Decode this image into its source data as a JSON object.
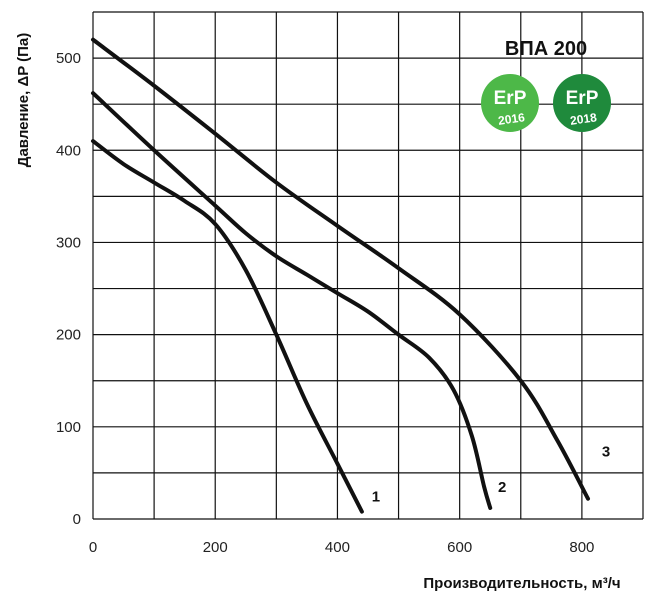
{
  "chart_data": {
    "type": "line",
    "xlabel": "Производительность, м³/ч",
    "ylabel": "Давление, ΔP (Па)",
    "xlim": [
      0,
      900
    ],
    "ylim": [
      0,
      550
    ],
    "x_grid_step": 100,
    "y_grid_step": 50,
    "x_ticks": [
      0,
      200,
      400,
      600,
      800
    ],
    "y_ticks": [
      0,
      100,
      200,
      300,
      400,
      500
    ],
    "grid": true,
    "series": [
      {
        "name": "1",
        "color": "#111111",
        "points": [
          [
            0,
            410
          ],
          [
            50,
            385
          ],
          [
            100,
            365
          ],
          [
            150,
            345
          ],
          [
            200,
            320
          ],
          [
            250,
            270
          ],
          [
            300,
            200
          ],
          [
            350,
            125
          ],
          [
            400,
            60
          ],
          [
            440,
            8
          ]
        ]
      },
      {
        "name": "2",
        "color": "#111111",
        "points": [
          [
            0,
            462
          ],
          [
            100,
            400
          ],
          [
            200,
            340
          ],
          [
            250,
            310
          ],
          [
            300,
            285
          ],
          [
            350,
            265
          ],
          [
            400,
            245
          ],
          [
            450,
            225
          ],
          [
            500,
            200
          ],
          [
            550,
            175
          ],
          [
            590,
            140
          ],
          [
            620,
            90
          ],
          [
            640,
            35
          ],
          [
            650,
            12
          ]
        ]
      },
      {
        "name": "3",
        "color": "#111111",
        "points": [
          [
            0,
            520
          ],
          [
            100,
            470
          ],
          [
            200,
            418
          ],
          [
            300,
            365
          ],
          [
            400,
            318
          ],
          [
            500,
            272
          ],
          [
            600,
            222
          ],
          [
            700,
            150
          ],
          [
            760,
            85
          ],
          [
            810,
            22
          ]
        ]
      }
    ]
  },
  "model_label": "ВПА 200",
  "badges": [
    {
      "line1": "ErP",
      "line2": "2016",
      "color": "#4db848"
    },
    {
      "line1": "ErP",
      "line2": "2018",
      "color": "#1f8a3c"
    }
  ]
}
